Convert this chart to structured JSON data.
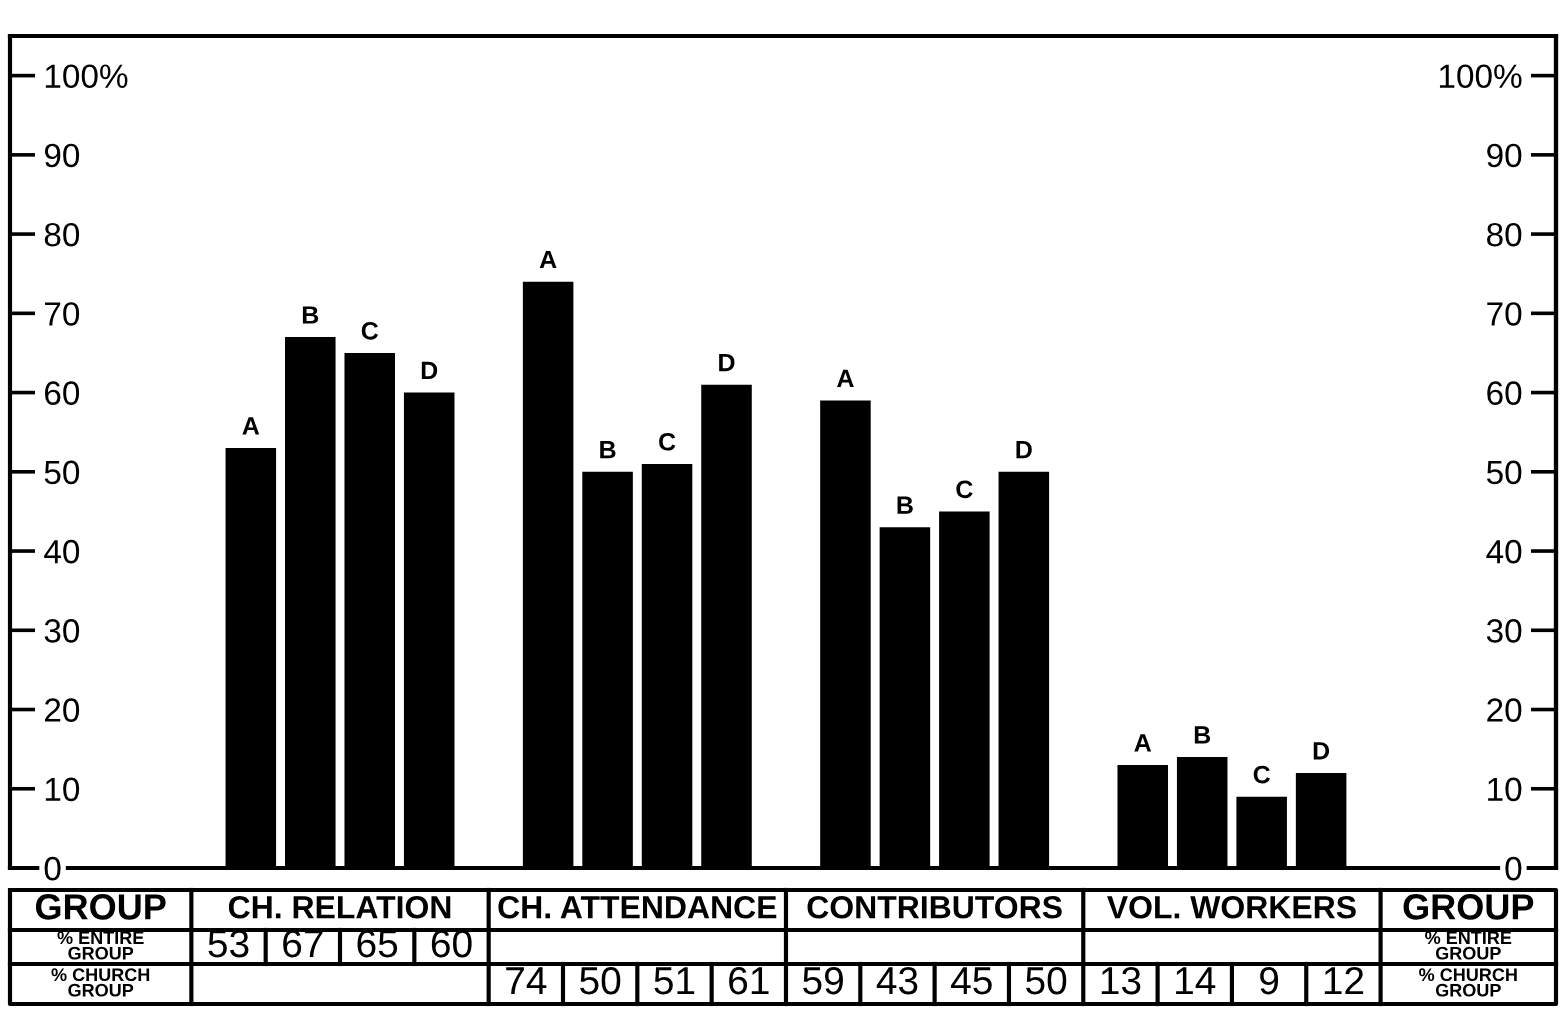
{
  "chart_data": {
    "type": "bar",
    "xlabel": "GROUP",
    "categories": [
      "CH. RELATION",
      "CH. ATTENDANCE",
      "CONTRIBUTORS",
      "VOL. WORKERS"
    ],
    "series": [
      {
        "name": "A",
        "color": "#000000",
        "values": [
          53,
          74,
          59,
          13
        ]
      },
      {
        "name": "B",
        "color": "#000000",
        "values": [
          67,
          50,
          43,
          14
        ]
      },
      {
        "name": "C",
        "color": "#000000",
        "values": [
          65,
          51,
          45,
          9
        ]
      },
      {
        "name": "D",
        "color": "#000000",
        "values": [
          60,
          61,
          50,
          12
        ]
      }
    ],
    "ylim": [
      0,
      105
    ],
    "yticks": [
      0,
      10,
      20,
      30,
      40,
      50,
      60,
      70,
      80,
      90,
      {
        "value": 100,
        "label": "100%"
      }
    ],
    "y2lim": [
      0,
      105
    ],
    "y2ticks": [
      0,
      10,
      20,
      30,
      40,
      50,
      60,
      70,
      80,
      90,
      {
        "value": 100,
        "label": "100%"
      }
    ],
    "grid": false,
    "data_labels": true,
    "annotations": [
      "% ENTIRE\nGROUP",
      "% CHURCH\nGROUP"
    ]
  }
}
